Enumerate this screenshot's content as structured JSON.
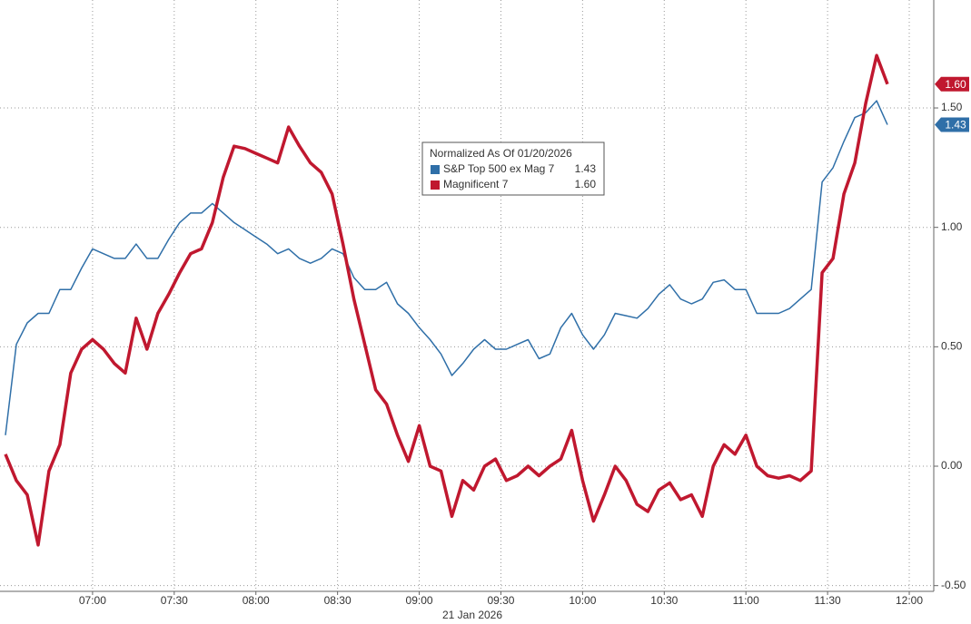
{
  "chart_data": {
    "type": "line",
    "legend_title": "Normalized As Of 01/20/2026",
    "x_label": "21 Jan 2026",
    "x": [
      "06:28",
      "06:32",
      "06:36",
      "06:40",
      "06:44",
      "06:48",
      "06:52",
      "06:56",
      "07:00",
      "07:04",
      "07:08",
      "07:12",
      "07:16",
      "07:20",
      "07:24",
      "07:28",
      "07:32",
      "07:36",
      "07:40",
      "07:44",
      "07:48",
      "07:52",
      "07:56",
      "08:00",
      "08:04",
      "08:08",
      "08:12",
      "08:16",
      "08:20",
      "08:24",
      "08:28",
      "08:32",
      "08:36",
      "08:40",
      "08:44",
      "08:48",
      "08:52",
      "08:56",
      "09:00",
      "09:04",
      "09:08",
      "09:12",
      "09:16",
      "09:20",
      "09:24",
      "09:28",
      "09:32",
      "09:36",
      "09:40",
      "09:44",
      "09:48",
      "09:52",
      "09:56",
      "10:00",
      "10:04",
      "10:08",
      "10:12",
      "10:16",
      "10:20",
      "10:24",
      "10:28",
      "10:32",
      "10:36",
      "10:40",
      "10:44",
      "10:48",
      "10:52",
      "10:56",
      "11:00",
      "11:04",
      "11:08",
      "11:12",
      "11:16",
      "11:20",
      "11:24",
      "11:28",
      "11:32",
      "11:36",
      "11:40",
      "11:44",
      "11:48",
      "11:52"
    ],
    "series": [
      {
        "name": "S&P Top 500 ex Mag 7",
        "color": "#2f6fa8",
        "last_label": "1.43",
        "line_width": 1.5,
        "values": [
          0.13,
          0.51,
          0.6,
          0.64,
          0.64,
          0.74,
          0.74,
          0.83,
          0.91,
          0.89,
          0.87,
          0.87,
          0.93,
          0.87,
          0.87,
          0.95,
          1.02,
          1.06,
          1.06,
          1.1,
          1.06,
          1.02,
          0.99,
          0.96,
          0.93,
          0.89,
          0.91,
          0.87,
          0.85,
          0.87,
          0.91,
          0.89,
          0.79,
          0.74,
          0.74,
          0.77,
          0.68,
          0.64,
          0.58,
          0.53,
          0.47,
          0.38,
          0.43,
          0.49,
          0.53,
          0.49,
          0.49,
          0.51,
          0.53,
          0.45,
          0.47,
          0.58,
          0.64,
          0.55,
          0.49,
          0.55,
          0.64,
          0.63,
          0.62,
          0.66,
          0.72,
          0.76,
          0.7,
          0.68,
          0.7,
          0.77,
          0.78,
          0.74,
          0.74,
          0.64,
          0.64,
          0.64,
          0.66,
          0.7,
          0.74,
          1.19,
          1.25,
          1.36,
          1.46,
          1.48,
          1.53,
          1.43
        ]
      },
      {
        "name": "Magnificent 7",
        "color": "#c0182f",
        "last_label": "1.60",
        "line_width": 3.5,
        "values": [
          0.05,
          -0.06,
          -0.12,
          -0.33,
          -0.02,
          0.09,
          0.39,
          0.49,
          0.53,
          0.49,
          0.43,
          0.39,
          0.62,
          0.49,
          0.64,
          0.72,
          0.81,
          0.89,
          0.91,
          1.02,
          1.21,
          1.34,
          1.33,
          1.31,
          1.29,
          1.27,
          1.42,
          1.34,
          1.27,
          1.23,
          1.14,
          0.93,
          0.7,
          0.51,
          0.32,
          0.26,
          0.13,
          0.02,
          0.17,
          0,
          -0.02,
          -0.21,
          -0.06,
          -0.1,
          0,
          0.03,
          -0.06,
          -0.04,
          0,
          -0.04,
          0,
          0.03,
          0.15,
          -0.06,
          -0.23,
          -0.12,
          0,
          -0.06,
          -0.16,
          -0.19,
          -0.1,
          -0.07,
          -0.14,
          -0.12,
          -0.21,
          0,
          0.09,
          0.05,
          0.13,
          0,
          -0.04,
          -0.05,
          -0.04,
          -0.06,
          -0.02,
          0.81,
          0.87,
          1.14,
          1.27,
          1.52,
          1.72,
          1.6
        ]
      }
    ],
    "xlim": [
      "06:26",
      "12:09"
    ],
    "xticks": [
      "07:00",
      "07:30",
      "08:00",
      "08:30",
      "09:00",
      "09:30",
      "10:00",
      "10:30",
      "11:00",
      "11:30",
      "12:00"
    ],
    "ylim": [
      -0.524,
      1.952
    ],
    "yticks": [
      {
        "value": -0.5,
        "label": "-0.50"
      },
      {
        "value": 0,
        "label": "0.00"
      },
      {
        "value": 0.5,
        "label": "0.50"
      },
      {
        "value": 1,
        "label": "1.00"
      },
      {
        "value": 1.5,
        "label": "1.50"
      }
    ],
    "grid": true
  }
}
